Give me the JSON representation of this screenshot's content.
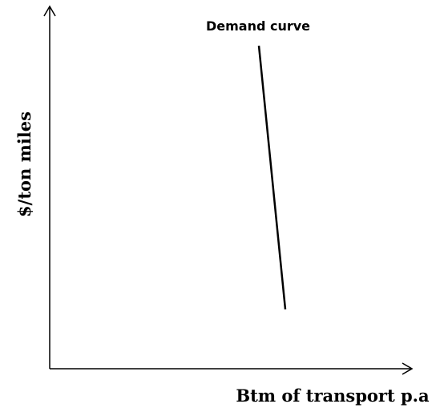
{
  "diagram": {
    "curve_label": "Demand curve",
    "y_axis_label": "$/ton miles",
    "x_axis_label": "Btm of transport p.a"
  }
}
